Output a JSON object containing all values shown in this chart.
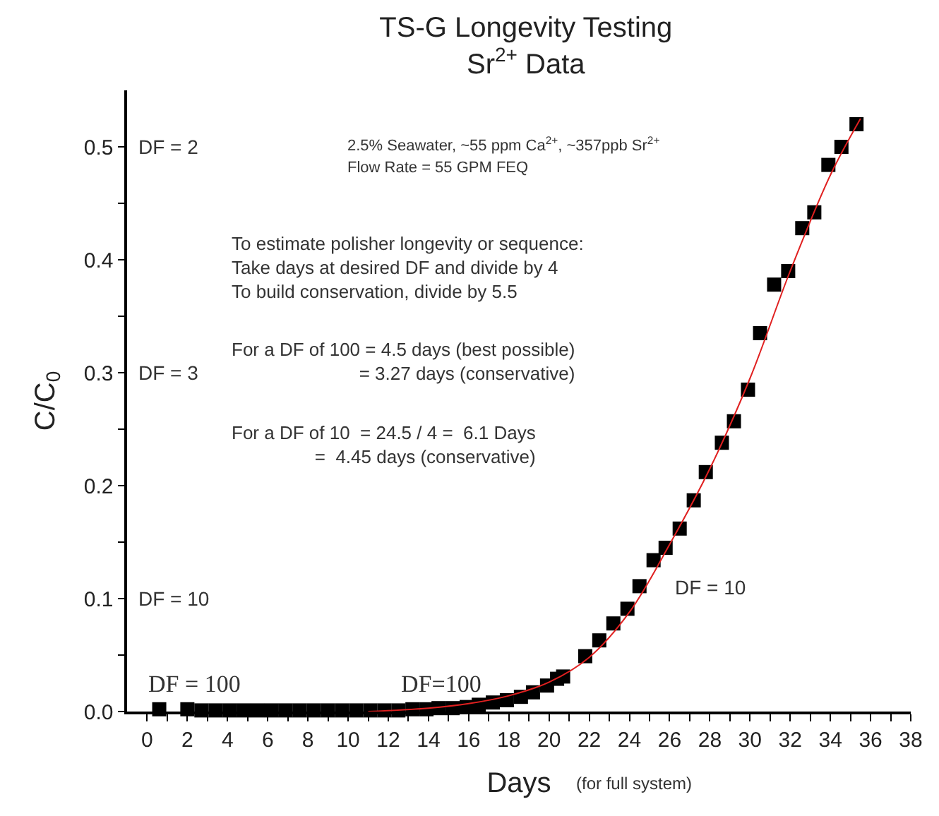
{
  "chart_data": {
    "type": "scatter",
    "title": "TS-G Longevity Testing",
    "subtitle": "Sr$^{2+}$ Data",
    "xlabel": "Days",
    "ylabel": "C/C$_{0}$",
    "annotations": [
      "2.5% Seawater, ~55 ppm Ca$^{2+}$, ~357ppb Sr$^{2+}$",
      "Flow Rate = 55 GPM FEQ",
      "To estimate polisher longevity or sequence:\nTake days at desired DF and divide by 4\nTo build conservation, divide by 5.5",
      "For a DF of 100 = 4.5 days (best possible)\n= 3.27 days (conservative)",
      "For a DF of 10  = 24.5 / 4 =  6.1 Days\n=  4.45 days (conservative)",
      "(for full system)",
      "DF = 2",
      "DF = 3",
      "DF = 10",
      "DF = 100",
      "DF=100",
      "DF = 10"
    ],
    "series": [
      {
        "color": "#000000",
        "marker": "square",
        "x": [
          0.6,
          2.0,
          2.7,
          3.4,
          4.1,
          4.8,
          5.5,
          6.2,
          6.9,
          7.6,
          8.3,
          9.0,
          9.7,
          10.4,
          11.1,
          11.8,
          12.5,
          13.2,
          13.9,
          14.5,
          15.2,
          15.9,
          16.5,
          17.2,
          17.9,
          18.6,
          19.2,
          19.9,
          20.4,
          20.7,
          21.8,
          22.5,
          23.2,
          23.9,
          24.5,
          25.2,
          25.8,
          26.5,
          27.2,
          27.8,
          28.6,
          29.2,
          29.9,
          30.5,
          31.2,
          31.9,
          32.6,
          33.2,
          33.9,
          34.55,
          35.3
        ],
        "values": [
          0.002,
          0.002,
          0.001,
          0.001,
          0.001,
          0.001,
          0.001,
          0.001,
          0.001,
          0.001,
          0.001,
          0.001,
          0.001,
          0.001,
          0.001,
          0.001,
          0.001,
          0.002,
          0.002,
          0.003,
          0.003,
          0.004,
          0.006,
          0.008,
          0.01,
          0.013,
          0.017,
          0.023,
          0.029,
          0.031,
          0.049,
          0.063,
          0.078,
          0.091,
          0.111,
          0.134,
          0.145,
          0.162,
          0.187,
          0.212,
          0.238,
          0.257,
          0.285,
          0.335,
          0.378,
          0.39,
          0.428,
          0.442,
          0.484,
          0.5,
          0.52
        ]
      },
      {
        "type": "line",
        "color": "#e02020",
        "line_style": "solid",
        "x": [
          11,
          14,
          16,
          18,
          20,
          22,
          24,
          26,
          28,
          30,
          32,
          34,
          35.5
        ],
        "values": [
          0,
          0.003,
          0.007,
          0.014,
          0.026,
          0.048,
          0.088,
          0.148,
          0.215,
          0.295,
          0.39,
          0.475,
          0.525
        ]
      }
    ],
    "xlim": [
      -1,
      38
    ],
    "xticks": [
      0,
      {
        "value": 1,
        "label": null
      },
      2,
      {
        "value": 3,
        "label": null
      },
      4,
      {
        "value": 5,
        "label": null
      },
      6,
      {
        "value": 7,
        "label": null
      },
      8,
      {
        "value": 9,
        "label": null
      },
      10,
      {
        "value": 11,
        "label": null
      },
      12,
      {
        "value": 13,
        "label": null
      },
      14,
      {
        "value": 15,
        "label": null
      },
      16,
      {
        "value": 17,
        "label": null
      },
      18,
      {
        "value": 19,
        "label": null
      },
      20,
      {
        "value": 21,
        "label": null
      },
      22,
      {
        "value": 23,
        "label": null
      },
      24,
      {
        "value": 25,
        "label": null
      },
      26,
      {
        "value": 27,
        "label": null
      },
      28,
      {
        "value": 29,
        "label": null
      },
      30,
      {
        "value": 31,
        "label": null
      },
      32,
      {
        "value": 33,
        "label": null
      },
      34,
      {
        "value": 35,
        "label": null
      },
      36,
      {
        "value": 37,
        "label": null
      },
      38
    ],
    "ylim": [
      0,
      0.55
    ],
    "yticks": [
      {
        "value": 0,
        "label": "0.0"
      },
      {
        "value": 0.05,
        "label": null
      },
      0.1,
      {
        "value": 0.15,
        "label": null
      },
      0.2,
      {
        "value": 0.25,
        "label": null
      },
      0.3,
      {
        "value": 0.35,
        "label": null
      },
      0.4,
      {
        "value": 0.45,
        "label": null
      },
      0.5
    ]
  }
}
